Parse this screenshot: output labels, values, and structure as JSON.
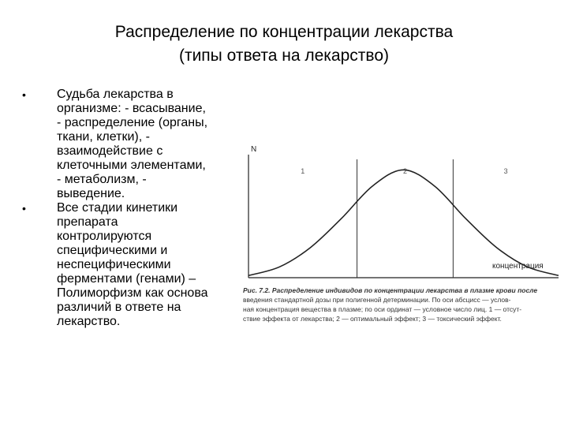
{
  "slide": {
    "title_line1": "Распределение по концентрации лекарства",
    "title_line2": "(типы ответа на лекарство)",
    "bullets": [
      [
        "Судьба лекарства в",
        "организме: - всасывание,",
        "- распределение (органы,",
        "ткани, клетки), -",
        "взаимодействие с",
        "клеточными элементами,",
        "- метаболизм, -",
        "выведение."
      ],
      [
        "Все стадии кинетики",
        "препарата",
        "контролируются",
        "специфическими и",
        "неспецифическими",
        "ферментами (генами) –",
        "Полиморфизм как основа",
        "различий в ответе на",
        "лекарство."
      ]
    ],
    "bullet_glyph": "•"
  },
  "figure": {
    "y_label": "N",
    "x_label": "концентрация",
    "zone_labels": [
      "1",
      "2",
      "3"
    ],
    "caption_title": "Рис. 7.2. Распределение индивидов по концентрации лекарства в плазме крови после",
    "caption_lines": [
      "введения стандартной дозы при полигенной детерминации. По оси абсцисс — услов-",
      "ная концентрация вещества в плазме; по оси ординат — условное число лиц. 1 — отсут-",
      "ствие эффекта от лекарства; 2 — оптимальный эффект; 3 — токсический эффект."
    ]
  },
  "chart_data": {
    "type": "line",
    "title": "",
    "xlabel": "концентрация",
    "ylabel": "N",
    "x": [
      0,
      1,
      2,
      3,
      4,
      5,
      6,
      7,
      8,
      9,
      10
    ],
    "series": [
      {
        "values": [
          0.02,
          0.1,
          0.28,
          0.55,
          0.85,
          1.0,
          0.85,
          0.55,
          0.28,
          0.1,
          0.02
        ]
      }
    ],
    "xlim": [
      0,
      10
    ],
    "ylim": [
      0,
      1.2
    ],
    "zones": [
      {
        "label": "1",
        "start": 0,
        "end": 3.5
      },
      {
        "label": "2",
        "start": 3.5,
        "end": 6.6
      },
      {
        "label": "3",
        "start": 6.6,
        "end": 10
      }
    ],
    "grid": false
  }
}
